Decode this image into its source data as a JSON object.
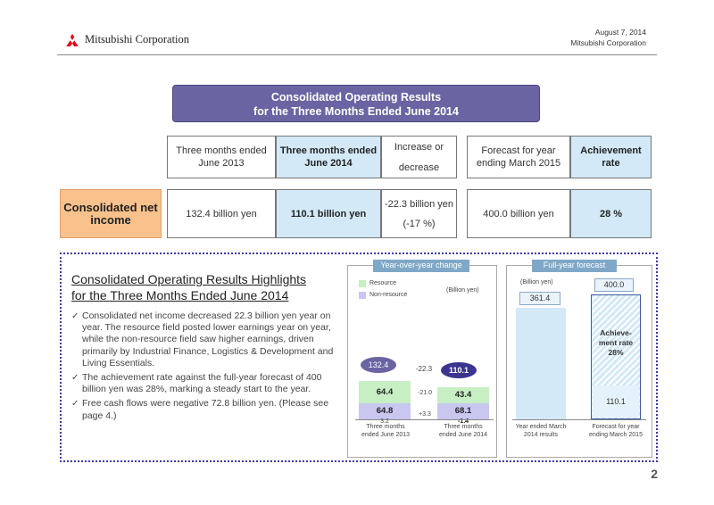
{
  "header": {
    "company": "Mitsubishi Corporation",
    "date": "August 7, 2014",
    "company_small": "Mitsubishi Corporation"
  },
  "title": {
    "line1": "Consolidated Operating Results",
    "line2": "for the Three Months Ended June 2014"
  },
  "table": {
    "col1": "Three months ended June 2013",
    "col2": "Three months ended June 2014",
    "col3_line1": "Increase or",
    "col3_line2": "decrease",
    "col4": "Forecast for year ending March 2015",
    "col5": "Achievement rate",
    "row_label": "Consolidated net income",
    "val1": "132.4 billion yen",
    "val2": "110.1 billion yen",
    "val3_line1": "-22.3 billion yen",
    "val3_line2": "(-17 %)",
    "val4": "400.0 billion yen",
    "val5": "28 %"
  },
  "highlights": {
    "title_line1": "Consolidated Operating Results Highlights",
    "title_line2": "for the Three Months Ended June 2014",
    "bullets": [
      "Consolidated net income decreased 22.3 billion yen year on year. The resource field posted lower earnings year on year, while the non-resource field saw higher earnings, driven primarily by Industrial Finance, Logistics & Development and Living Essentials.",
      " The achievement rate against the full-year forecast of 400 billion yen was 28%, marking a steady start to the year.",
      "Free cash flows were negative 72.8 billion yen. (Please see page 4.)"
    ]
  },
  "yoy": {
    "tab": "Year-over-year change",
    "legend_resource": "Resource",
    "legend_nonresource": "Non-resource",
    "unit": "(Billion yen)",
    "total_2013": "132.4",
    "total_2014": "110.1",
    "diff_total": "-22.3",
    "resource_2013": "64.4",
    "resource_2014": "43.4",
    "diff_resource": "-21.0",
    "nonresource_2013": "64.8",
    "nonresource_2014": "68.1",
    "diff_nonresource": "+3.3",
    "other_2013": "3.2",
    "other_2014": "-1.4",
    "label_2013": "Three months ended June 2013",
    "label_2014": "Three months ended June 2014"
  },
  "forecast": {
    "tab": "Full-year forecast",
    "unit": "(Billion yen)",
    "val_2014": "361.4",
    "val_2015": "400.0",
    "achievement_line1": "Achieve-",
    "achievement_line2": "ment rate",
    "achievement_line3": "28%",
    "actual": "110.1",
    "label_left": "Year ended March 2014 results",
    "label_right": "Forecast for year ending March 2015"
  },
  "page_number": "2",
  "colors": {
    "title_bg": "#6a64a3",
    "highlight_cell": "#d3e9f7",
    "net_income_label": "#f9c18c",
    "resource": "#c7efc3",
    "non_resource": "#c9c6f0",
    "tab": "#7fa8c8",
    "logo_red": "#e60012"
  }
}
